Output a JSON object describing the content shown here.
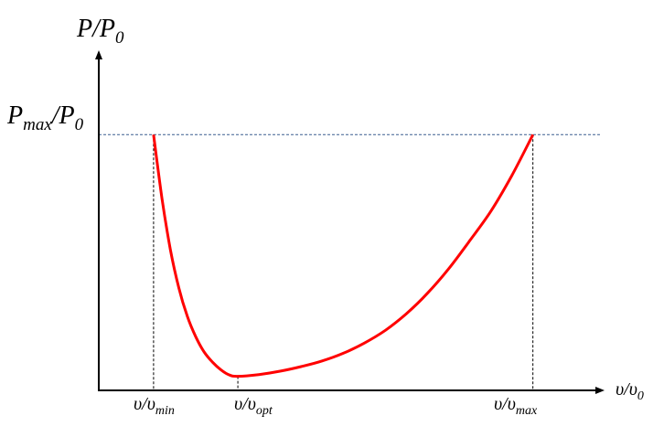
{
  "chart_data": {
    "type": "line",
    "title": "",
    "y_axis_label": {
      "base": "P/P",
      "sub": "0"
    },
    "x_axis_label": {
      "base": "υ/υ",
      "sub": "0"
    },
    "y_reference_label": {
      "p1": "P",
      "p1_sub": "max",
      "p2": "/P",
      "p2_sub": "0"
    },
    "x_markers": [
      {
        "key": "min",
        "base": "υ/υ",
        "sub": "min",
        "x": 0.1
      },
      {
        "key": "opt",
        "base": "υ/υ",
        "sub": "opt",
        "x": 0.3
      },
      {
        "key": "max",
        "base": "υ/υ",
        "sub": "max",
        "x": 1.0
      }
    ],
    "y_reference_value": 1.0,
    "xlim": [
      -0.03,
      1.17
    ],
    "ylim": [
      0,
      1.33
    ],
    "series": [
      {
        "color": "#ff0000",
        "x": [
          0.1,
          0.12,
          0.14,
          0.16,
          0.18,
          0.2,
          0.22,
          0.24,
          0.26,
          0.28,
          0.3,
          0.35,
          0.4,
          0.45,
          0.5,
          0.55,
          0.6,
          0.65,
          0.7,
          0.75,
          0.8,
          0.85,
          0.9,
          0.95,
          1.0
        ],
        "y": [
          1.0,
          0.75,
          0.55,
          0.4,
          0.29,
          0.21,
          0.15,
          0.11,
          0.08,
          0.06,
          0.055,
          0.062,
          0.075,
          0.093,
          0.115,
          0.145,
          0.185,
          0.235,
          0.3,
          0.38,
          0.475,
          0.585,
          0.7,
          0.84,
          1.0
        ]
      }
    ],
    "styles": {
      "axis_color": "#000000",
      "ref_line_color": "#3a5f8f",
      "guide_color": "#000000"
    }
  }
}
